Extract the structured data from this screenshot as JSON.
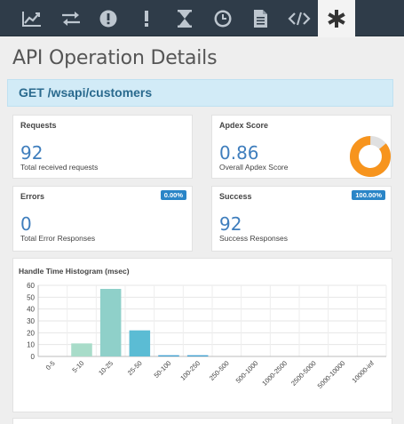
{
  "toolbar": {
    "items": [
      {
        "icon": "line-chart-icon"
      },
      {
        "icon": "exchange-icon"
      },
      {
        "icon": "alert-circle-icon"
      },
      {
        "icon": "exclamation-icon"
      },
      {
        "icon": "hourglass-icon"
      },
      {
        "icon": "clock-icon"
      },
      {
        "icon": "document-icon"
      },
      {
        "icon": "code-icon"
      },
      {
        "icon": "asterisk-icon",
        "active": true
      }
    ]
  },
  "page": {
    "title": "API Operation Details",
    "endpoint": "GET /wsapi/customers"
  },
  "cards": {
    "requests": {
      "title": "Requests",
      "value": "92",
      "subtitle": "Total received requests"
    },
    "apdex": {
      "title": "Apdex Score",
      "value": "0.86",
      "subtitle": "Overall Apdex Score",
      "score": 0.86,
      "ring_color": "#f7941d",
      "ring_bg": "#e0e0e0"
    },
    "errors": {
      "title": "Errors",
      "value": "0",
      "subtitle": "Total Error Responses",
      "badge": "0.00%"
    },
    "success": {
      "title": "Success",
      "value": "92",
      "subtitle": "Success Responses",
      "badge": "100.00%"
    }
  },
  "chart_data": {
    "type": "bar",
    "title": "Handle Time Histogram (msec)",
    "categories": [
      "0-5",
      "5-10",
      "10-25",
      "25-50",
      "50-100",
      "100-250",
      "250-500",
      "500-1000",
      "1000-2500",
      "2500-5000",
      "5000-10000",
      "10000-inf"
    ],
    "values": [
      0,
      11,
      57,
      22,
      1,
      1,
      0,
      0,
      0,
      0,
      0,
      0
    ],
    "colors": [
      "#a8dcc9",
      "#a8dcc9",
      "#8fd0c9",
      "#5bbcd4",
      "#3f9fd0",
      "#3f9fd0",
      "#3f9fd0",
      "#3f9fd0",
      "#3f9fd0",
      "#3f9fd0",
      "#3f9fd0",
      "#3f9fd0"
    ],
    "ylim": [
      0,
      60
    ],
    "yticks": [
      0,
      10,
      20,
      30,
      40,
      50,
      60
    ],
    "grid": true,
    "xlabel": "",
    "ylabel": ""
  }
}
